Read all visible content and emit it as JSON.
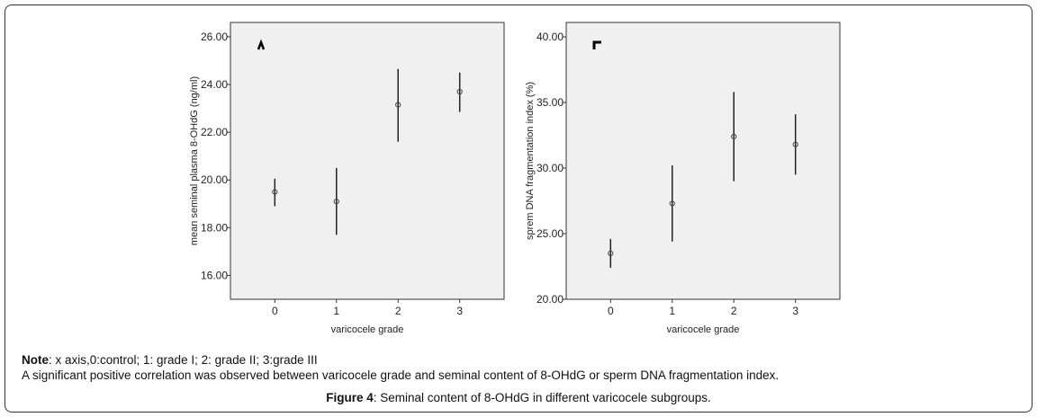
{
  "chart_data": [
    {
      "type": "errorbar",
      "xlabel": "varicocele grade",
      "ylabel": "mean seminal plasma 8-OHdG (ng/ml)",
      "categories": [
        "0",
        "1",
        "2",
        "3"
      ],
      "xlim": [
        -0.72,
        3.72
      ],
      "ylim": [
        15,
        26.6
      ],
      "yticks": [
        "16.00",
        "18.00",
        "20.00",
        "22.00",
        "24.00",
        "26.00"
      ],
      "means": [
        19.5,
        19.1,
        23.15,
        23.7
      ],
      "lower": [
        18.9,
        17.7,
        21.6,
        22.85
      ],
      "upper": [
        20.05,
        20.5,
        24.65,
        24.5
      ],
      "background": "#f0f0f0",
      "grid": false
    },
    {
      "type": "errorbar",
      "xlabel": "varicocele grade",
      "ylabel": "sprem DNA fragmentation index (%)",
      "categories": [
        "0",
        "1",
        "2",
        "3"
      ],
      "xlim": [
        -0.72,
        3.72
      ],
      "ylim": [
        20,
        41.1
      ],
      "yticks": [
        "20.00",
        "25.00",
        "30.00",
        "35.00",
        "40.00"
      ],
      "means": [
        23.5,
        27.3,
        32.4,
        31.8
      ],
      "lower": [
        22.4,
        24.4,
        29.0,
        29.5
      ],
      "upper": [
        24.6,
        30.2,
        35.8,
        34.1
      ],
      "background": "#f0f0f0",
      "grid": false
    }
  ],
  "caption": {
    "note_label": "Note",
    "note_text": ": x axis,0:control; 1: grade I; 2: grade II; 3:grade III",
    "finding": "A significant positive correlation was observed between varicocele grade and seminal content of 8-OHdG or sperm DNA fragmentation index.",
    "figure_label": "Figure 4",
    "figure_text": ": Seminal content of 8-OHdG in different varicocele subgroups."
  }
}
